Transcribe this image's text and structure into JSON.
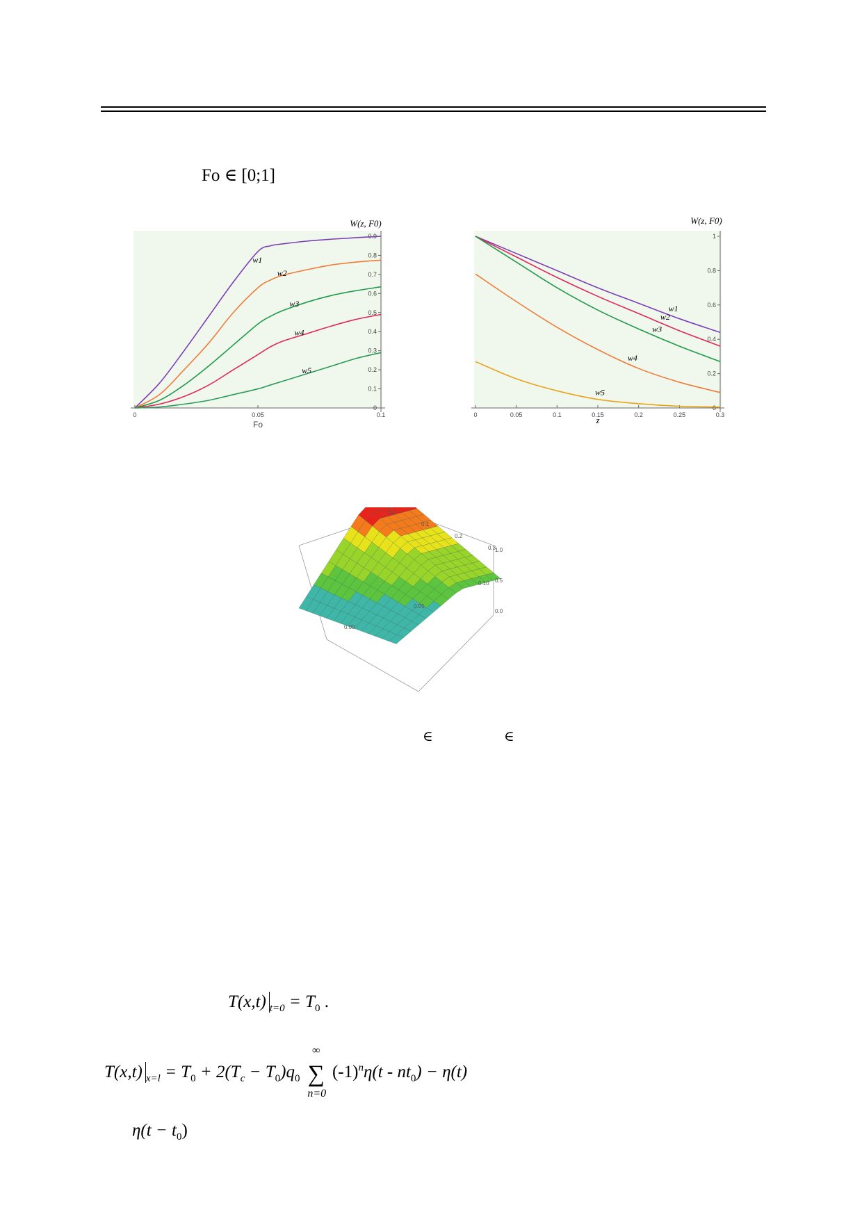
{
  "header": {
    "interval_text": "Fo ∈ [0;1]"
  },
  "chart_data": [
    {
      "type": "line",
      "ylabel": "W(z, F0)",
      "xlabel": "Fo",
      "xlim": [
        0,
        0.1
      ],
      "ylim": [
        0,
        0.9
      ],
      "x_ticks": [
        "0",
        "0.05",
        "0.1"
      ],
      "y_ticks": [
        "0",
        "0.1",
        "0.2",
        "0.3",
        "0.4",
        "0.5",
        "0.6",
        "0.7",
        "0.8",
        "0.9"
      ],
      "grid": false,
      "x": [
        0,
        0.01,
        0.02,
        0.03,
        0.04,
        0.05,
        0.055,
        0.06,
        0.07,
        0.08,
        0.09,
        0.1
      ],
      "series": [
        {
          "name": "w1",
          "values": [
            0,
            0.13,
            0.3,
            0.48,
            0.66,
            0.82,
            0.85,
            0.86,
            0.875,
            0.885,
            0.893,
            0.9
          ],
          "color": "#7b3fb5"
        },
        {
          "name": "w2",
          "values": [
            0,
            0.07,
            0.2,
            0.34,
            0.5,
            0.63,
            0.67,
            0.695,
            0.725,
            0.75,
            0.765,
            0.775
          ],
          "color": "#f07c3a"
        },
        {
          "name": "w3",
          "values": [
            0,
            0.04,
            0.12,
            0.22,
            0.33,
            0.44,
            0.48,
            0.51,
            0.555,
            0.59,
            0.615,
            0.635
          ],
          "color": "#1f9a4a"
        },
        {
          "name": "w4",
          "values": [
            0,
            0.02,
            0.06,
            0.12,
            0.2,
            0.28,
            0.32,
            0.35,
            0.39,
            0.43,
            0.465,
            0.49
          ],
          "color": "#e0285a"
        },
        {
          "name": "w5",
          "values": [
            0,
            0.005,
            0.02,
            0.04,
            0.07,
            0.1,
            0.12,
            0.14,
            0.18,
            0.22,
            0.26,
            0.29
          ],
          "color": "#2a9a5a"
        }
      ]
    },
    {
      "type": "line",
      "ylabel": "W(z, F0)",
      "xlabel": "z",
      "xlim": [
        0,
        0.3
      ],
      "ylim": [
        0,
        1
      ],
      "x_ticks": [
        "0",
        "0.05",
        "0.1",
        "0.15",
        "0.2",
        "0.25",
        "0.3"
      ],
      "y_ticks": [
        "0",
        "0.2",
        "0.4",
        "0.6",
        "0.8",
        "1"
      ],
      "grid": false,
      "x": [
        0,
        0.05,
        0.1,
        0.15,
        0.2,
        0.25,
        0.3
      ],
      "series": [
        {
          "name": "w1",
          "values": [
            1,
            0.9,
            0.8,
            0.7,
            0.61,
            0.52,
            0.44
          ],
          "color": "#7b3fb5"
        },
        {
          "name": "w2",
          "values": [
            1,
            0.88,
            0.76,
            0.65,
            0.55,
            0.45,
            0.36
          ],
          "color": "#e0285a"
        },
        {
          "name": "w3",
          "values": [
            1,
            0.85,
            0.7,
            0.57,
            0.46,
            0.36,
            0.27
          ],
          "color": "#1f9a4a"
        },
        {
          "name": "w4",
          "values": [
            0.78,
            0.62,
            0.47,
            0.34,
            0.23,
            0.15,
            0.09
          ],
          "color": "#f07c3a"
        },
        {
          "name": "w5",
          "values": [
            0.27,
            0.17,
            0.1,
            0.05,
            0.025,
            0.01,
            0.005
          ],
          "color": "#e8a31a"
        }
      ]
    }
  ],
  "surface": {
    "axis_top_ticks": [
      "0.0",
      "0.1",
      "0.2",
      "0.3"
    ],
    "axis_right_ticks": [
      "1.0",
      "0.5",
      "0.0"
    ],
    "axis_bottom_ticks": [
      "0.00",
      "0.05",
      "0.10"
    ]
  },
  "caption_symbols": [
    "∈",
    "∈"
  ],
  "equations": {
    "eq1_lhs": "T(x,t)",
    "eq1_sub": "t=0",
    "eq1_rhs": "= T",
    "eq1_rhs_sub": "0",
    "eq1_end": ".",
    "eq2_lhs": "T(x,t)",
    "eq2_sub": "x=l",
    "eq2_a": "= T",
    "eq2_a_sub": "0",
    "eq2_b": "+ 2(T",
    "eq2_b_sub": "c",
    "eq2_c": "− T",
    "eq2_c_sub": "0",
    "eq2_d": ")q",
    "eq2_d_sub": "0",
    "eq2_sum": "∑",
    "eq2_sum_top": "∞",
    "eq2_sum_bottom": "n=0",
    "eq2_e": "(-1)",
    "eq2_e_sup": "n",
    "eq2_f": "η(t - nt",
    "eq2_f_sub": "0",
    "eq2_g": ") − η(t)",
    "eq3": "η(t − t",
    "eq3_sub": "0",
    "eq3_end": ")"
  }
}
